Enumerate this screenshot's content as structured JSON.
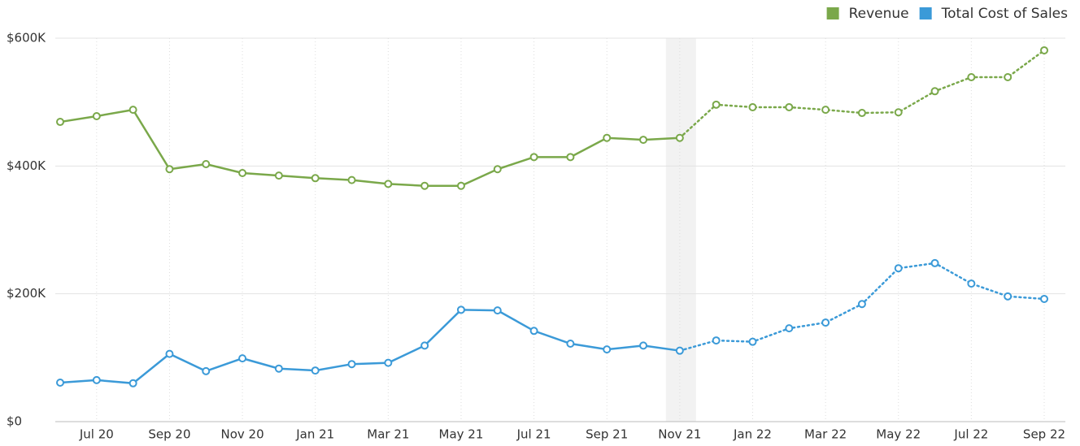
{
  "chart_data": {
    "type": "line",
    "categories": [
      null,
      "Jul 20",
      null,
      "Sep 20",
      null,
      "Nov 20",
      null,
      "Jan 21",
      null,
      "Mar 21",
      null,
      "May 21",
      null,
      "Jul 21",
      null,
      "Sep 21",
      null,
      "Nov 21",
      null,
      "Jan 22",
      null,
      "Mar 22",
      null,
      "May 22",
      null,
      "Jul 22",
      null,
      "Sep 22"
    ],
    "series": [
      {
        "name": "Revenue",
        "color": "#7aa84a",
        "values": [
          469000,
          478000,
          488000,
          395000,
          403000,
          389000,
          385000,
          381000,
          378000,
          372000,
          369000,
          369000,
          395000,
          414000,
          414000,
          444000,
          441000,
          444000,
          496000,
          492000,
          492000,
          488000,
          483000,
          484000,
          517000,
          539000,
          539000,
          581000
        ]
      },
      {
        "name": "Total Cost of Sales",
        "color": "#3b9ad8",
        "values": [
          61000,
          65000,
          60000,
          106000,
          79000,
          99000,
          83000,
          80000,
          90000,
          92000,
          119000,
          175000,
          174000,
          142000,
          122000,
          113000,
          119000,
          111000,
          127000,
          125000,
          146000,
          155000,
          184000,
          240000,
          248000,
          216000,
          196000,
          192000
        ]
      }
    ],
    "forecast_start": "Nov 21",
    "ylim": [
      0,
      600000
    ],
    "yticks": [
      {
        "value": 0,
        "label": "$0"
      },
      {
        "value": 200000,
        "label": "$200K"
      },
      {
        "value": 400000,
        "label": "$400K"
      },
      {
        "value": 600000,
        "label": "$600K"
      }
    ],
    "grid": true,
    "legend": "top-right"
  }
}
